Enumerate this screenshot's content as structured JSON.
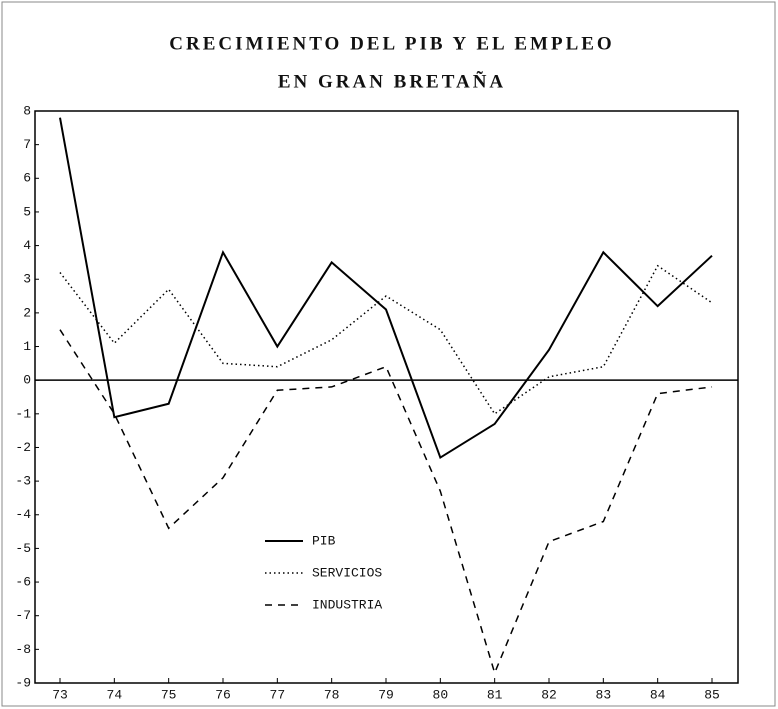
{
  "chart_data": {
    "type": "line",
    "title": [
      "CRECIMIENTO DEL PIB Y EL EMPLEO",
      "EN GRAN BRETAÑA"
    ],
    "categories": [
      "73",
      "74",
      "75",
      "76",
      "77",
      "78",
      "79",
      "80",
      "81",
      "82",
      "83",
      "84",
      "85"
    ],
    "series": [
      {
        "name": "PIB",
        "color": "#000000",
        "dash": "solid",
        "values": [
          7.8,
          -1.1,
          -0.7,
          3.8,
          1.0,
          3.5,
          2.1,
          -2.3,
          -1.3,
          0.9,
          3.8,
          2.2,
          3.7
        ]
      },
      {
        "name": "SERVICIOS",
        "color": "#000000",
        "dash": "dotted",
        "values": [
          3.2,
          1.1,
          2.7,
          0.5,
          0.4,
          1.2,
          2.5,
          1.5,
          -1.0,
          0.1,
          0.4,
          3.4,
          2.3
        ]
      },
      {
        "name": "INDUSTRIA",
        "color": "#000000",
        "dash": "dashed",
        "values": [
          1.5,
          -1.0,
          -4.4,
          -2.9,
          -0.3,
          -0.2,
          0.4,
          -3.3,
          -8.7,
          -4.8,
          -4.2,
          -0.4,
          -0.2
        ]
      }
    ],
    "ylim": [
      -9,
      8
    ],
    "yticks": [
      8,
      7,
      6,
      5,
      4,
      3,
      2,
      1,
      0,
      -1,
      -2,
      -3,
      -4,
      -5,
      -6,
      -7,
      -8,
      -9
    ],
    "zero_line": true,
    "legend": "inside-bottom-center"
  }
}
